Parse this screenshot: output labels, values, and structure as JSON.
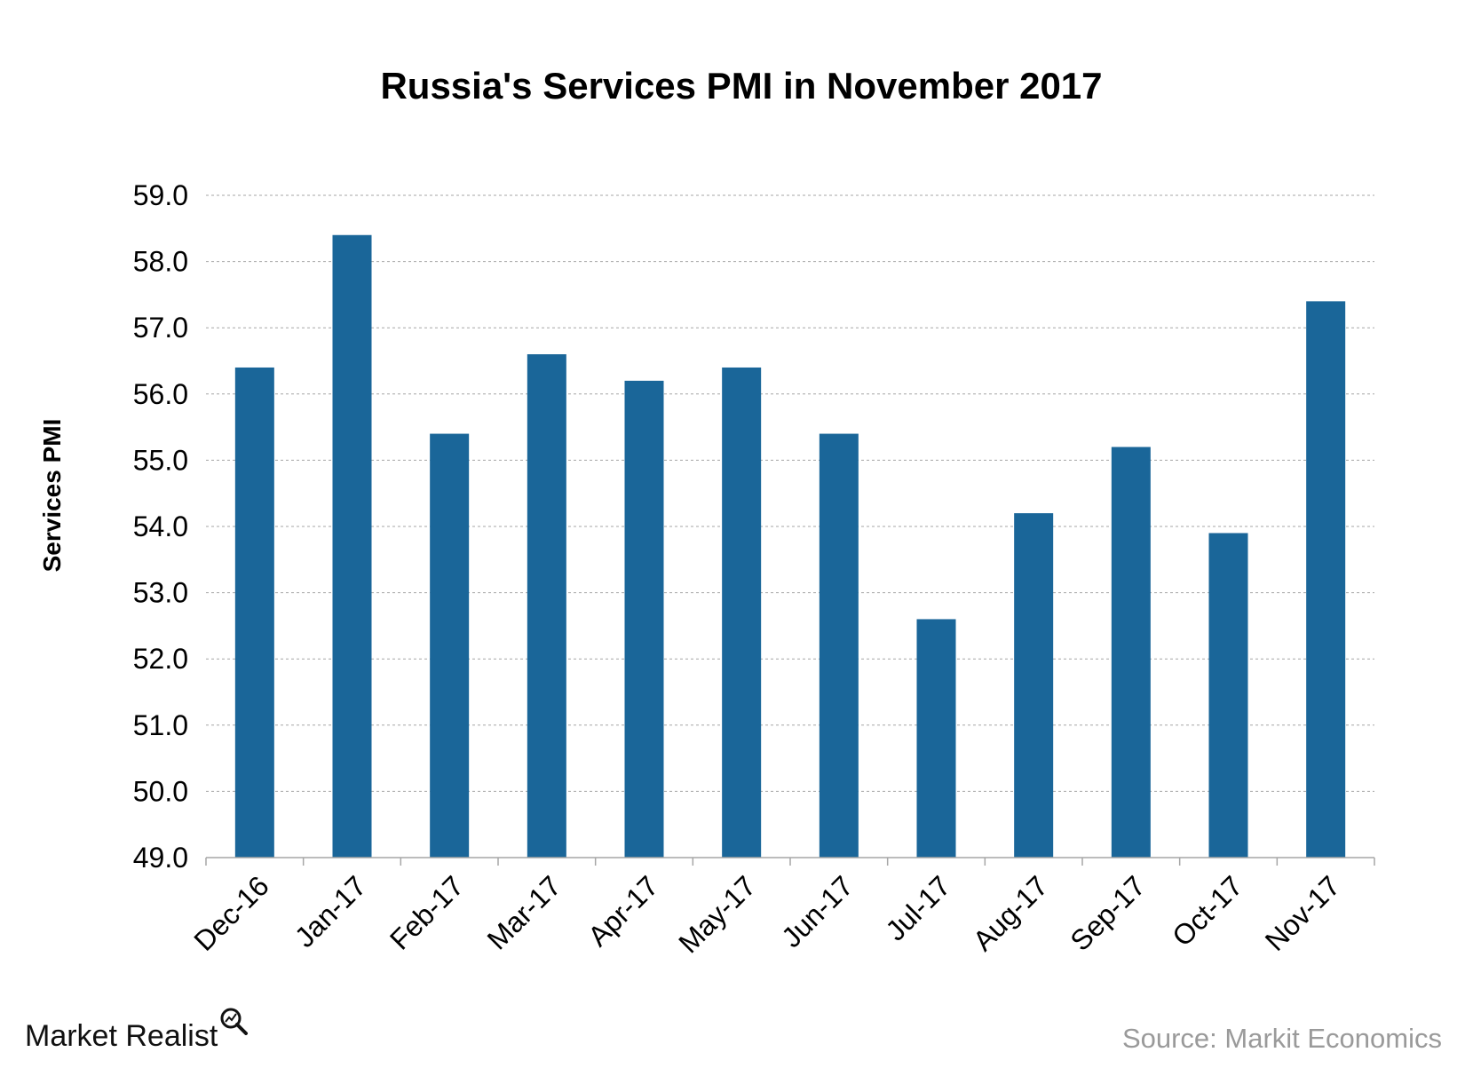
{
  "chart_data": {
    "type": "bar",
    "title": "Russia's Services PMI in November 2017",
    "ylabel": "Services PMI",
    "xlabel": "",
    "categories": [
      "Dec-16",
      "Jan-17",
      "Feb-17",
      "Mar-17",
      "Apr-17",
      "May-17",
      "Jun-17",
      "Jul-17",
      "Aug-17",
      "Sep-17",
      "Oct-17",
      "Nov-17"
    ],
    "values": [
      56.4,
      58.4,
      55.4,
      56.6,
      56.2,
      56.4,
      55.4,
      52.6,
      54.2,
      55.2,
      53.9,
      57.4
    ],
    "ylim": [
      49.0,
      59.0
    ],
    "yticks": [
      "49.0",
      "50.0",
      "51.0",
      "52.0",
      "53.0",
      "54.0",
      "55.0",
      "56.0",
      "57.0",
      "58.0",
      "59.0"
    ],
    "grid": true,
    "bar_color": "#1a6699"
  },
  "branding": {
    "logo_text": "Market Realist",
    "logo_icon": "magnifier-chart-icon"
  },
  "source": "Source: Markit Economics"
}
